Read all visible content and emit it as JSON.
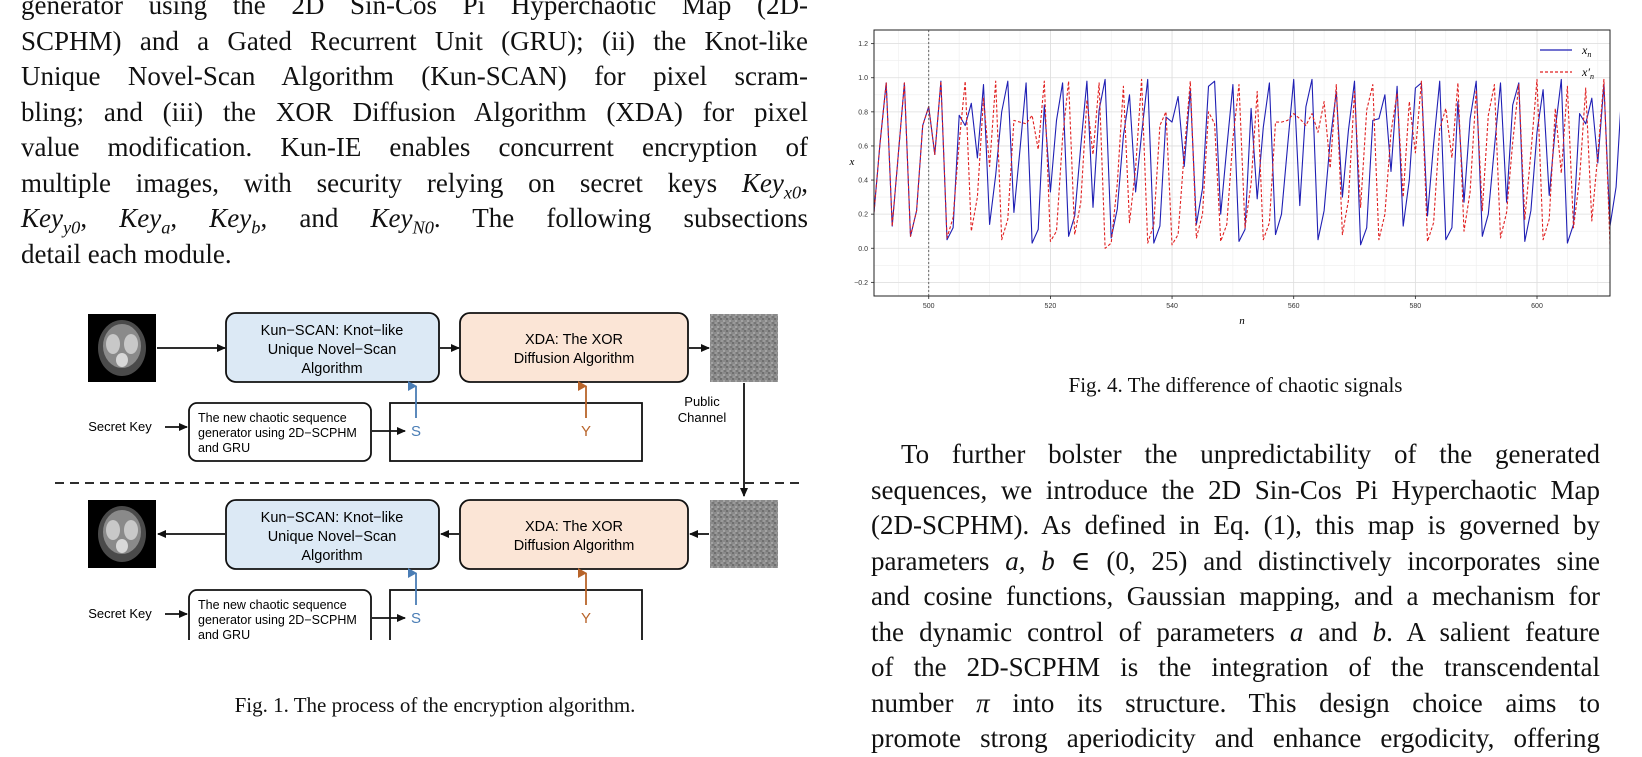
{
  "left_paragraph": {
    "lines": [
      "generator using the 2D Sin-Cos Pi Hyperchaotic Map (2D-",
      "SCPHM) and a Gated Recurrent Unit (GRU); (ii) the Knot-like",
      "Unique Novel-Scan Algorithm (Kun-SCAN) for pixel scram-",
      "bling; and (iii) the XOR Diffusion Algorithm (XDA) for pixel",
      "value modification. Kun-IE enables concurrent encryption of"
    ],
    "line6_text": "multiple images, with security relying on secret keys",
    "line7_text": ", and",
    "line7_tail": ". The following subsections",
    "line8": "detail each module.",
    "keys": {
      "key_x0": "Key",
      "key_x0_sub": "x0",
      "key_y0": "Key",
      "key_y0_sub": "y0",
      "key_a": "Key",
      "key_a_sub": "a",
      "key_b": "Key",
      "key_b_sub": "b",
      "key_n0": "Key",
      "key_n0_sub": "N0"
    }
  },
  "figure1": {
    "caption": "Fig. 1.  The process of the encryption algorithm.",
    "kunscan_line1": "Kun−SCAN: Knot−like",
    "kunscan_line2": "Unique Novel−Scan",
    "kunscan_line3": "Algorithm",
    "xda_line1": "XDA: The XOR",
    "xda_line2": "Diffusion Algorithm",
    "generator_line1": "The new chaotic sequence",
    "generator_line2": "generator using 2D−SCPHM",
    "generator_line3": "and GRU",
    "secret_key": "Secret Key",
    "seq_s": "S",
    "seq_y": "Y",
    "public_line1": "Public",
    "public_line2": "Channel",
    "colors": {
      "blue_box": "#dce9f5",
      "orange_box": "#fbe5d6",
      "s_arrow": "#4a7db5",
      "y_arrow": "#b8642a"
    }
  },
  "figure4": {
    "caption": "Fig. 4.  The difference of chaotic signals",
    "chart_data": {
      "type": "line",
      "xlabel": "n",
      "ylabel": "x",
      "xlim": [
        491,
        612
      ],
      "ylim": [
        -0.28,
        1.28
      ],
      "xticks": [
        "500",
        "520",
        "540",
        "560",
        "580",
        "600"
      ],
      "yticks": [
        "−0.2",
        "0.0",
        "0.2",
        "0.4",
        "0.6",
        "0.8",
        "1.0",
        "1.2"
      ],
      "grid": true,
      "legend_placement": "top-right",
      "series": [
        {
          "name": "x_n",
          "legend_base": "x",
          "legend_sub": "n",
          "legend_prime": "",
          "color": "#1f1fb4",
          "style": "solid",
          "x0": 491,
          "values": [
            0.21,
            0.62,
            0.97,
            0.13,
            0.55,
            0.97,
            0.07,
            0.22,
            0.72,
            0.83,
            0.55,
            0.98,
            0.05,
            0.12,
            0.78,
            0.72,
            0.85,
            0.53,
            0.96,
            0.14,
            0.43,
            0.8,
            0.98,
            0.21,
            0.58,
            0.97,
            0.03,
            0.11,
            0.84,
            0.33,
            0.75,
            0.97,
            0.07,
            0.19,
            0.6,
            0.98,
            0.24,
            0.81,
            0.99,
            0.06,
            0.23,
            0.66,
            0.9,
            0.33,
            0.67,
            0.99,
            0.03,
            0.13,
            0.77,
            0.74,
            0.89,
            0.48,
            0.93,
            0.14,
            0.35,
            0.95,
            0.98,
            0.2,
            0.59,
            0.96,
            0.04,
            0.11,
            0.82,
            0.29,
            0.71,
            0.97,
            0.08,
            0.2,
            0.6,
            0.99,
            0.25,
            0.83,
            0.99,
            0.05,
            0.22,
            0.63,
            0.92,
            0.3,
            0.69,
            0.98,
            0.02,
            0.12,
            0.75,
            0.76,
            0.9,
            0.45,
            0.95,
            0.13,
            0.4,
            0.94,
            0.97,
            0.19,
            0.61,
            0.98,
            0.05,
            0.12,
            0.86,
            0.27,
            0.76,
            0.98,
            0.07,
            0.2,
            0.59,
            0.97,
            0.27,
            0.84,
            0.97,
            0.04,
            0.22,
            0.68,
            0.93,
            0.31,
            0.7,
            0.99,
            0.03,
            0.14,
            0.79,
            0.73,
            0.88,
            0.5,
            0.96,
            0.13,
            0.36,
            0.97,
            0.99,
            0.06
          ]
        },
        {
          "name": "x'_n",
          "legend_base": "x",
          "legend_sub": "n",
          "legend_prime": "′",
          "color": "#e02020",
          "style": "dashed",
          "x0": 491,
          "values": [
            0.21,
            0.62,
            0.97,
            0.13,
            0.55,
            0.97,
            0.07,
            0.22,
            0.72,
            0.83,
            0.55,
            0.98,
            0.06,
            0.18,
            0.62,
            0.98,
            0.1,
            0.3,
            0.88,
            0.48,
            0.98,
            0.05,
            0.17,
            0.75,
            0.74,
            0.73,
            0.78,
            0.58,
            0.98,
            0.04,
            0.1,
            0.65,
            0.98,
            0.08,
            0.27,
            0.87,
            0.55,
            0.97,
            0.0,
            0.03,
            0.38,
            0.95,
            0.15,
            0.47,
            0.99,
            0.03,
            0.14,
            0.72,
            0.8,
            0.02,
            0.08,
            0.56,
            0.98,
            0.06,
            0.2,
            0.8,
            0.73,
            0.04,
            0.14,
            0.64,
            0.96,
            0.12,
            0.38,
            0.92,
            0.05,
            0.15,
            0.74,
            0.74,
            0.75,
            0.79,
            0.76,
            0.72,
            0.79,
            0.68,
            0.86,
            0.47,
            0.96,
            0.08,
            0.28,
            0.92,
            0.24,
            0.81,
            0.96,
            0.05,
            0.2,
            0.68,
            0.91,
            0.3,
            0.86,
            0.56,
            0.98,
            0.04,
            0.15,
            0.7,
            0.82,
            0.53,
            0.97,
            0.1,
            0.33,
            0.93,
            0.22,
            0.78,
            0.96,
            0.06,
            0.21,
            0.62,
            0.96,
            0.17,
            0.56,
            0.99,
            0.05,
            0.17,
            0.82,
            0.44,
            0.95,
            0.12,
            0.41,
            0.94,
            0.16,
            0.55,
            0.99,
            0.02
          ]
        }
      ]
    }
  },
  "right_paragraph": {
    "line1": "To further bolster the unpredictability of the generated",
    "line2": "sequences, we introduce the 2D Sin-Cos Pi Hyperchaotic Map",
    "line3": "(2D-SCPHM). As defined in Eq. (1), this map is governed by",
    "line4_a": "parameters",
    "line4_math": "a, b",
    "line4_in": "∈",
    "line4_interval": "(0, 25)",
    "line4_b": "and distinctively incorporates sine",
    "line5": "and cosine functions, Gaussian mapping, and a mechanism for",
    "line6_a": "the dynamic control of parameters",
    "line6_var_a": "a",
    "line6_and": "and",
    "line6_var_b": "b",
    "line6_b": ". A salient feature",
    "line7": "of the 2D-SCPHM is the integration of the transcendental",
    "line8_a": "number",
    "line8_pi": "π",
    "line8_b": "into its structure. This design choice aims to",
    "line9": "promote strong aperiodicity and enhance ergodicity, offering"
  }
}
